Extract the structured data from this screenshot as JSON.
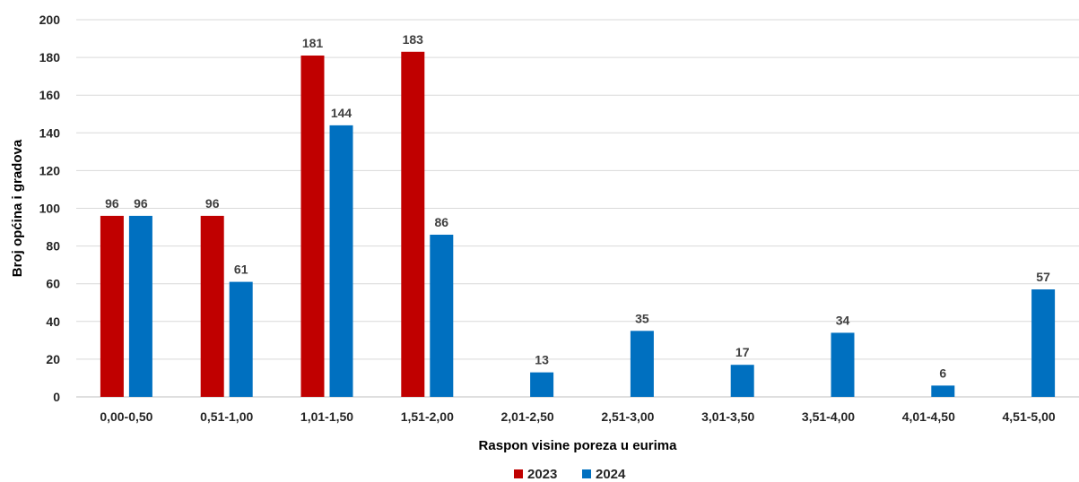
{
  "chart_data": {
    "type": "bar",
    "title": "",
    "xlabel": "Raspon visine poreza u eurima",
    "ylabel": "Broj općina i gradova",
    "ylim": [
      0,
      200
    ],
    "yticks": [
      0,
      20,
      40,
      60,
      80,
      100,
      120,
      140,
      160,
      180,
      200
    ],
    "grid": true,
    "legend_position": "bottom",
    "categories": [
      "0,00-0,50",
      "0,51-1,00",
      "1,01-1,50",
      "1,51-2,00",
      "2,01-2,50",
      "2,51-3,00",
      "3,01-3,50",
      "3,51-4,00",
      "4,01-4,50",
      "4,51-5,00"
    ],
    "series": [
      {
        "name": "2023",
        "color": "#C00000",
        "values": [
          96,
          96,
          181,
          183,
          null,
          null,
          null,
          null,
          null,
          null
        ]
      },
      {
        "name": "2024",
        "color": "#0070C0",
        "values": [
          96,
          61,
          144,
          86,
          13,
          35,
          17,
          34,
          6,
          57
        ]
      }
    ]
  }
}
